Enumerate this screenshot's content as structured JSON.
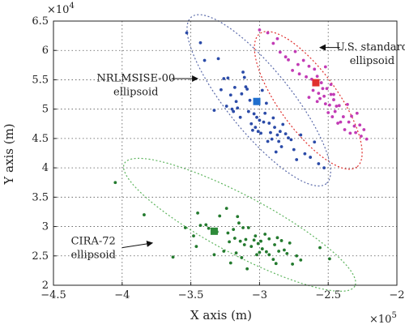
{
  "chart_data": {
    "type": "scatter",
    "xlabel": "X axis (m)",
    "ylabel": "Y axis (m)",
    "xlim": [
      -450000,
      -200000
    ],
    "ylim": [
      20000,
      65000
    ],
    "x_ticks": [
      -4.5,
      -4,
      -3.5,
      -3,
      -2.5,
      -2
    ],
    "y_ticks": [
      2,
      2.5,
      3,
      3.5,
      4,
      4.5,
      5,
      5.5,
      6,
      6.5
    ],
    "x_multiplier": "×10",
    "x_multiplier_exp": "5",
    "y_multiplier": "×10",
    "y_multiplier_exp": "4",
    "tick_scale_x": 100000,
    "tick_scale_y": 10000,
    "grid": true,
    "series": [
      {
        "name": "U.S. standard ellipsoid",
        "color": "#c23bb5",
        "ellipse_color": "#e0302e",
        "center": [
          -259000,
          54500
        ],
        "center_color": "#e0302e",
        "ellipse": {
          "cx": -264500,
          "cy": 51500,
          "rx": 60000,
          "ry": 5500,
          "angle_deg": 54
        },
        "points": [
          [
            -300000,
            63500
          ],
          [
            -294000,
            63000
          ],
          [
            -290000,
            61200
          ],
          [
            -287000,
            62000
          ],
          [
            -285000,
            59700
          ],
          [
            -281000,
            58900
          ],
          [
            -279000,
            58400
          ],
          [
            -276000,
            56600
          ],
          [
            -274000,
            59800
          ],
          [
            -272000,
            57600
          ],
          [
            -271000,
            56000
          ],
          [
            -268000,
            58300
          ],
          [
            -266000,
            55500
          ],
          [
            -264000,
            57300
          ],
          [
            -262000,
            55100
          ],
          [
            -261000,
            53200
          ],
          [
            -260000,
            56800
          ],
          [
            -258000,
            55600
          ],
          [
            -257000,
            52700
          ],
          [
            -256000,
            51800
          ],
          [
            -255000,
            54500
          ],
          [
            -254000,
            53500
          ],
          [
            -253000,
            52200
          ],
          [
            -252000,
            50900
          ],
          [
            -251000,
            53500
          ],
          [
            -250000,
            49400
          ],
          [
            -249000,
            50700
          ],
          [
            -248000,
            52500
          ],
          [
            -247000,
            48700
          ],
          [
            -246000,
            51600
          ],
          [
            -245000,
            49600
          ],
          [
            -244000,
            50500
          ],
          [
            -243000,
            47600
          ],
          [
            -242000,
            50600
          ],
          [
            -241000,
            47800
          ],
          [
            -239000,
            48700
          ],
          [
            -238000,
            46500
          ],
          [
            -236000,
            50800
          ],
          [
            -235000,
            47800
          ],
          [
            -234000,
            45900
          ],
          [
            -233000,
            48800
          ],
          [
            -231000,
            47100
          ],
          [
            -230000,
            46000
          ],
          [
            -229000,
            49300
          ],
          [
            -227000,
            47300
          ],
          [
            -226000,
            45400
          ],
          [
            -224000,
            46500
          ],
          [
            -222000,
            44900
          ],
          [
            -264000,
            52000
          ],
          [
            -258000,
            51300
          ],
          [
            -248000,
            54200
          ],
          [
            -246000,
            52500
          ],
          [
            -252000,
            57200
          ]
        ]
      },
      {
        "name": "NRLMSISE-00 ellipsoid",
        "color": "#2b4ba8",
        "ellipse_color": "#5a6aaa",
        "center": [
          -302000,
          51300
        ],
        "center_color": "#1f6fce",
        "ellipse": {
          "cx": -300500,
          "cy": 51500,
          "rx": 78000,
          "ry": 6000,
          "angle_deg": 51
        },
        "points": [
          [
            -353000,
            63000
          ],
          [
            -343000,
            61300
          ],
          [
            -340000,
            58300
          ],
          [
            -330000,
            58600
          ],
          [
            -328000,
            53300
          ],
          [
            -326000,
            55200
          ],
          [
            -324000,
            50500
          ],
          [
            -323000,
            55300
          ],
          [
            -321000,
            52400
          ],
          [
            -319000,
            49600
          ],
          [
            -318000,
            53700
          ],
          [
            -317000,
            51300
          ],
          [
            -316000,
            50200
          ],
          [
            -314000,
            48600
          ],
          [
            -313000,
            52600
          ],
          [
            -312000,
            56300
          ],
          [
            -311000,
            55400
          ],
          [
            -310000,
            53800
          ],
          [
            -309000,
            53400
          ],
          [
            -308000,
            49600
          ],
          [
            -307000,
            51500
          ],
          [
            -306000,
            47500
          ],
          [
            -305000,
            46400
          ],
          [
            -304000,
            49200
          ],
          [
            -303000,
            46900
          ],
          [
            -302000,
            48600
          ],
          [
            -301000,
            46200
          ],
          [
            -300000,
            48100
          ],
          [
            -299000,
            45900
          ],
          [
            -298000,
            53200
          ],
          [
            -297000,
            47800
          ],
          [
            -296000,
            49300
          ],
          [
            -295000,
            51000
          ],
          [
            -294000,
            44500
          ],
          [
            -293000,
            47600
          ],
          [
            -292000,
            46000
          ],
          [
            -291000,
            44900
          ],
          [
            -290000,
            48500
          ],
          [
            -289000,
            46900
          ],
          [
            -288000,
            42700
          ],
          [
            -287000,
            45600
          ],
          [
            -286000,
            44500
          ],
          [
            -285000,
            46200
          ],
          [
            -284000,
            43600
          ],
          [
            -283000,
            47400
          ],
          [
            -281000,
            45800
          ],
          [
            -279000,
            45100
          ],
          [
            -277000,
            44800
          ],
          [
            -275000,
            43100
          ],
          [
            -273000,
            41400
          ],
          [
            -270000,
            45600
          ],
          [
            -267000,
            42400
          ],
          [
            -263000,
            41800
          ],
          [
            -260000,
            44400
          ],
          [
            -257000,
            40700
          ],
          [
            -253000,
            40000
          ],
          [
            -333000,
            49800
          ],
          [
            -320000,
            50000
          ]
        ]
      },
      {
        "name": "CIRA-72 ellipsoid",
        "color": "#237a2e",
        "ellipse_color": "#5fb55f",
        "center": [
          -333000,
          29200
        ],
        "center_color": "#2e8b3a",
        "ellipse": {
          "cx": -314500,
          "cy": 30300,
          "rx": 95000,
          "ry": 5500,
          "angle_deg": 28
        },
        "points": [
          [
            -405000,
            37500
          ],
          [
            -384000,
            32000
          ],
          [
            -363000,
            24800
          ],
          [
            -354000,
            29800
          ],
          [
            -348000,
            28400
          ],
          [
            -346000,
            26600
          ],
          [
            -345000,
            32300
          ],
          [
            -343000,
            30200
          ],
          [
            -339000,
            30300
          ],
          [
            -337000,
            29700
          ],
          [
            -333000,
            25200
          ],
          [
            -331000,
            29100
          ],
          [
            -329000,
            31800
          ],
          [
            -326000,
            25800
          ],
          [
            -324000,
            33100
          ],
          [
            -323000,
            28900
          ],
          [
            -322000,
            27400
          ],
          [
            -321000,
            23800
          ],
          [
            -319000,
            29500
          ],
          [
            -318000,
            28000
          ],
          [
            -317000,
            25500
          ],
          [
            -316000,
            31700
          ],
          [
            -315000,
            30600
          ],
          [
            -314000,
            27500
          ],
          [
            -313000,
            24700
          ],
          [
            -312000,
            29800
          ],
          [
            -311000,
            26900
          ],
          [
            -310000,
            27800
          ],
          [
            -309000,
            22800
          ],
          [
            -308000,
            29800
          ],
          [
            -306000,
            26600
          ],
          [
            -304000,
            27700
          ],
          [
            -303000,
            28400
          ],
          [
            -302000,
            25200
          ],
          [
            -301000,
            27100
          ],
          [
            -300000,
            25600
          ],
          [
            -299000,
            27500
          ],
          [
            -298000,
            26200
          ],
          [
            -296000,
            28700
          ],
          [
            -295000,
            25700
          ],
          [
            -293000,
            27900
          ],
          [
            -290000,
            24400
          ],
          [
            -289000,
            26900
          ],
          [
            -287000,
            28100
          ],
          [
            -286000,
            25800
          ],
          [
            -284000,
            27600
          ],
          [
            -282000,
            26000
          ],
          [
            -280000,
            25400
          ],
          [
            -278000,
            27200
          ],
          [
            -276000,
            23600
          ],
          [
            -273000,
            25000
          ],
          [
            -270000,
            24300
          ],
          [
            -256000,
            26400
          ],
          [
            -249000,
            24500
          ],
          [
            -288000,
            23700
          ],
          [
            -293000,
            25200
          ]
        ]
      }
    ],
    "annotations": [
      {
        "lines": [
          "U.S. standard",
          "ellipsoid"
        ],
        "text_at": [
          -218000,
          60000
        ],
        "arrow_from": [
          -241500,
          60500
        ],
        "arrow_to": [
          -256000,
          60500
        ]
      },
      {
        "lines": [
          "NRLMSISE-00",
          "ellipsoid"
        ],
        "text_at": [
          -390000,
          54700
        ],
        "arrow_from": [
          -364000,
          55200
        ],
        "arrow_to": [
          -345000,
          55200
        ]
      },
      {
        "lines": [
          "CIRA-72",
          "ellipsoid"
        ],
        "text_at": [
          -421000,
          27000
        ],
        "arrow_from": [
          -400000,
          26400
        ],
        "arrow_to": [
          -378000,
          27200
        ]
      }
    ]
  }
}
